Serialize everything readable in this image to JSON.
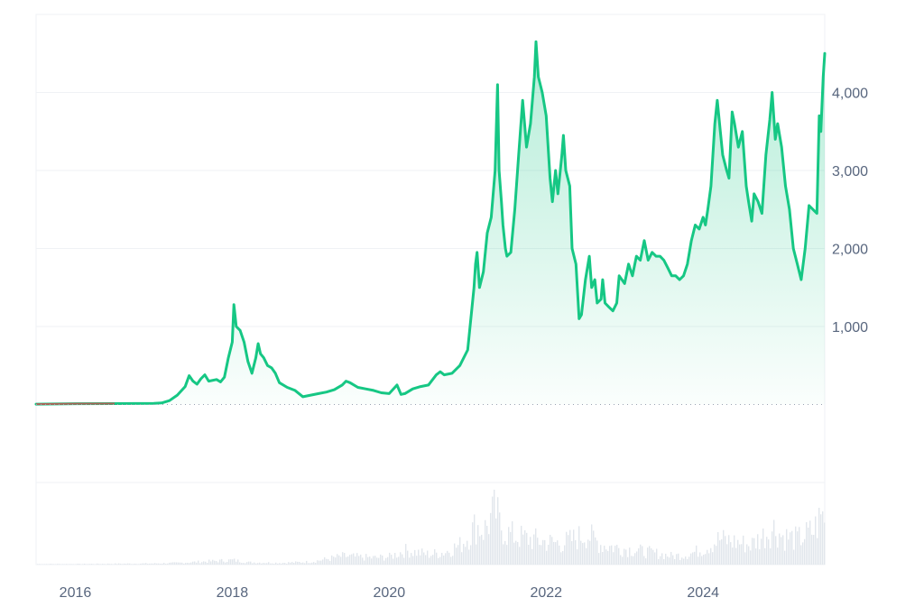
{
  "chart_data": {
    "type": "area",
    "title": "",
    "xlabel": "",
    "ylabel": "",
    "x_ticks": [
      "2016",
      "2018",
      "2020",
      "2022",
      "2024"
    ],
    "y_ticks": [
      "1,000",
      "2,000",
      "3,000",
      "4,000"
    ],
    "y_tick_values": [
      1000,
      2000,
      3000,
      4000
    ],
    "ylim": [
      -1000,
      5000
    ],
    "xlim": [
      2015.5,
      2025.55
    ],
    "baseline": 0,
    "grid": true,
    "legend": "none",
    "colors": {
      "line": "#16c784",
      "fill": "#16c784",
      "early": "#ea3943",
      "grid": "#eff2f5",
      "axis_text": "#58667e",
      "volume": "#e1e6ec"
    },
    "series": [
      {
        "values": [
          [
            2015.5,
            5
          ],
          [
            2016.0,
            10
          ],
          [
            2016.5,
            12
          ],
          [
            2017.0,
            15
          ],
          [
            2017.1,
            20
          ],
          [
            2017.2,
            50
          ],
          [
            2017.3,
            120
          ],
          [
            2017.4,
            230
          ],
          [
            2017.45,
            370
          ],
          [
            2017.5,
            300
          ],
          [
            2017.55,
            260
          ],
          [
            2017.6,
            330
          ],
          [
            2017.65,
            380
          ],
          [
            2017.7,
            300
          ],
          [
            2017.8,
            320
          ],
          [
            2017.85,
            290
          ],
          [
            2017.9,
            350
          ],
          [
            2017.95,
            600
          ],
          [
            2018.0,
            800
          ],
          [
            2018.02,
            1280
          ],
          [
            2018.05,
            1000
          ],
          [
            2018.1,
            950
          ],
          [
            2018.15,
            800
          ],
          [
            2018.2,
            550
          ],
          [
            2018.25,
            400
          ],
          [
            2018.3,
            600
          ],
          [
            2018.33,
            780
          ],
          [
            2018.36,
            650
          ],
          [
            2018.4,
            600
          ],
          [
            2018.45,
            500
          ],
          [
            2018.5,
            470
          ],
          [
            2018.55,
            400
          ],
          [
            2018.6,
            280
          ],
          [
            2018.7,
            220
          ],
          [
            2018.8,
            180
          ],
          [
            2018.9,
            100
          ],
          [
            2019.0,
            120
          ],
          [
            2019.1,
            140
          ],
          [
            2019.2,
            160
          ],
          [
            2019.3,
            190
          ],
          [
            2019.4,
            250
          ],
          [
            2019.45,
            300
          ],
          [
            2019.5,
            280
          ],
          [
            2019.6,
            220
          ],
          [
            2019.7,
            200
          ],
          [
            2019.8,
            180
          ],
          [
            2019.9,
            150
          ],
          [
            2020.0,
            140
          ],
          [
            2020.1,
            250
          ],
          [
            2020.15,
            130
          ],
          [
            2020.2,
            140
          ],
          [
            2020.3,
            200
          ],
          [
            2020.4,
            230
          ],
          [
            2020.5,
            250
          ],
          [
            2020.6,
            380
          ],
          [
            2020.65,
            420
          ],
          [
            2020.7,
            380
          ],
          [
            2020.8,
            400
          ],
          [
            2020.9,
            500
          ],
          [
            2021.0,
            700
          ],
          [
            2021.05,
            1200
          ],
          [
            2021.08,
            1500
          ],
          [
            2021.1,
            1800
          ],
          [
            2021.12,
            1950
          ],
          [
            2021.15,
            1500
          ],
          [
            2021.2,
            1700
          ],
          [
            2021.25,
            2200
          ],
          [
            2021.3,
            2400
          ],
          [
            2021.35,
            3000
          ],
          [
            2021.38,
            4100
          ],
          [
            2021.4,
            3000
          ],
          [
            2021.43,
            2600
          ],
          [
            2021.45,
            2300
          ],
          [
            2021.48,
            2000
          ],
          [
            2021.5,
            1900
          ],
          [
            2021.55,
            1950
          ],
          [
            2021.6,
            2500
          ],
          [
            2021.65,
            3200
          ],
          [
            2021.7,
            3900
          ],
          [
            2021.75,
            3300
          ],
          [
            2021.8,
            3600
          ],
          [
            2021.85,
            4200
          ],
          [
            2021.87,
            4650
          ],
          [
            2021.9,
            4200
          ],
          [
            2021.95,
            4000
          ],
          [
            2022.0,
            3700
          ],
          [
            2022.05,
            2900
          ],
          [
            2022.08,
            2600
          ],
          [
            2022.12,
            3000
          ],
          [
            2022.15,
            2700
          ],
          [
            2022.2,
            3200
          ],
          [
            2022.22,
            3450
          ],
          [
            2022.25,
            3000
          ],
          [
            2022.3,
            2800
          ],
          [
            2022.33,
            2000
          ],
          [
            2022.38,
            1800
          ],
          [
            2022.42,
            1100
          ],
          [
            2022.45,
            1150
          ],
          [
            2022.5,
            1600
          ],
          [
            2022.55,
            1900
          ],
          [
            2022.58,
            1500
          ],
          [
            2022.62,
            1600
          ],
          [
            2022.65,
            1300
          ],
          [
            2022.7,
            1350
          ],
          [
            2022.72,
            1600
          ],
          [
            2022.75,
            1300
          ],
          [
            2022.8,
            1250
          ],
          [
            2022.85,
            1200
          ],
          [
            2022.9,
            1300
          ],
          [
            2022.93,
            1650
          ],
          [
            2023.0,
            1550
          ],
          [
            2023.05,
            1800
          ],
          [
            2023.1,
            1650
          ],
          [
            2023.15,
            1900
          ],
          [
            2023.2,
            1850
          ],
          [
            2023.25,
            2100
          ],
          [
            2023.3,
            1850
          ],
          [
            2023.35,
            1950
          ],
          [
            2023.4,
            1900
          ],
          [
            2023.45,
            1900
          ],
          [
            2023.5,
            1850
          ],
          [
            2023.55,
            1750
          ],
          [
            2023.6,
            1650
          ],
          [
            2023.65,
            1650
          ],
          [
            2023.7,
            1600
          ],
          [
            2023.75,
            1650
          ],
          [
            2023.8,
            1800
          ],
          [
            2023.85,
            2100
          ],
          [
            2023.9,
            2300
          ],
          [
            2023.95,
            2250
          ],
          [
            2024.0,
            2400
          ],
          [
            2024.03,
            2300
          ],
          [
            2024.06,
            2500
          ],
          [
            2024.1,
            2800
          ],
          [
            2024.15,
            3600
          ],
          [
            2024.18,
            3900
          ],
          [
            2024.22,
            3500
          ],
          [
            2024.25,
            3200
          ],
          [
            2024.3,
            3000
          ],
          [
            2024.33,
            2900
          ],
          [
            2024.37,
            3750
          ],
          [
            2024.4,
            3600
          ],
          [
            2024.45,
            3300
          ],
          [
            2024.5,
            3500
          ],
          [
            2024.55,
            2800
          ],
          [
            2024.58,
            2600
          ],
          [
            2024.62,
            2350
          ],
          [
            2024.65,
            2700
          ],
          [
            2024.7,
            2600
          ],
          [
            2024.75,
            2450
          ],
          [
            2024.8,
            3200
          ],
          [
            2024.85,
            3650
          ],
          [
            2024.88,
            4000
          ],
          [
            2024.92,
            3400
          ],
          [
            2024.95,
            3600
          ],
          [
            2025.0,
            3300
          ],
          [
            2025.05,
            2800
          ],
          [
            2025.1,
            2500
          ],
          [
            2025.15,
            2000
          ],
          [
            2025.2,
            1800
          ],
          [
            2025.25,
            1600
          ],
          [
            2025.3,
            2000
          ],
          [
            2025.35,
            2550
          ],
          [
            2025.4,
            2500
          ],
          [
            2025.45,
            2450
          ],
          [
            2025.48,
            3700
          ],
          [
            2025.5,
            3500
          ],
          [
            2025.53,
            4200
          ],
          [
            2025.55,
            4500
          ]
        ]
      }
    ],
    "volume": {
      "ymax": 100,
      "values": [
        [
          2015.5,
          1
        ],
        [
          2016.0,
          1
        ],
        [
          2017.0,
          2
        ],
        [
          2017.3,
          3
        ],
        [
          2018.0,
          8
        ],
        [
          2018.2,
          4
        ],
        [
          2018.6,
          3
        ],
        [
          2019.0,
          5
        ],
        [
          2019.4,
          15
        ],
        [
          2019.8,
          12
        ],
        [
          2020.0,
          14
        ],
        [
          2020.2,
          25
        ],
        [
          2020.5,
          18
        ],
        [
          2020.7,
          22
        ],
        [
          2020.9,
          35
        ],
        [
          2021.0,
          50
        ],
        [
          2021.1,
          70
        ],
        [
          2021.2,
          60
        ],
        [
          2021.3,
          85
        ],
        [
          2021.35,
          95
        ],
        [
          2021.4,
          70
        ],
        [
          2021.5,
          55
        ],
        [
          2021.6,
          50
        ],
        [
          2021.8,
          45
        ],
        [
          2022.0,
          40
        ],
        [
          2022.2,
          38
        ],
        [
          2022.4,
          48
        ],
        [
          2022.5,
          55
        ],
        [
          2022.7,
          35
        ],
        [
          2022.9,
          30
        ],
        [
          2023.0,
          28
        ],
        [
          2023.3,
          22
        ],
        [
          2023.6,
          15
        ],
        [
          2023.8,
          18
        ],
        [
          2024.0,
          28
        ],
        [
          2024.2,
          45
        ],
        [
          2024.4,
          40
        ],
        [
          2024.6,
          35
        ],
        [
          2024.8,
          55
        ],
        [
          2024.9,
          65
        ],
        [
          2025.0,
          50
        ],
        [
          2025.2,
          45
        ],
        [
          2025.4,
          60
        ],
        [
          2025.5,
          85
        ],
        [
          2025.55,
          90
        ]
      ]
    }
  }
}
